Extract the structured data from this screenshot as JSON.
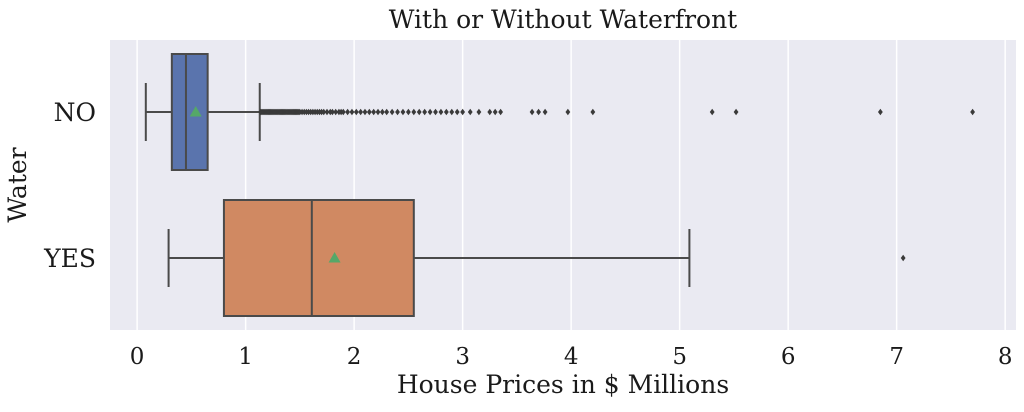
{
  "chart_data": {
    "type": "boxplot",
    "orientation": "horizontal",
    "title": "With or Without Waterfront",
    "xlabel": "House Prices in $ Millions",
    "ylabel": "Water",
    "xlim": [
      -0.25,
      8.1
    ],
    "xticks": [
      0,
      1,
      2,
      3,
      4,
      5,
      6,
      7,
      8
    ],
    "grid": true,
    "colors": {
      "background": "#eaeaf2",
      "grid": "#ffffff",
      "line": "#4a4a4a",
      "mean_marker": "#55a868",
      "NO": "#5a74ad",
      "YES": "#d08962"
    },
    "series": [
      {
        "name": "NO",
        "whisker_low": 0.08,
        "q1": 0.32,
        "median": 0.45,
        "q3": 0.65,
        "whisker_high": 1.13,
        "mean": 0.54,
        "outliers": [
          1.14,
          1.15,
          1.16,
          1.17,
          1.18,
          1.19,
          1.2,
          1.21,
          1.22,
          1.23,
          1.24,
          1.25,
          1.26,
          1.27,
          1.28,
          1.29,
          1.3,
          1.31,
          1.32,
          1.33,
          1.34,
          1.35,
          1.36,
          1.37,
          1.38,
          1.39,
          1.4,
          1.41,
          1.42,
          1.43,
          1.44,
          1.45,
          1.46,
          1.47,
          1.48,
          1.49,
          1.5,
          1.52,
          1.54,
          1.56,
          1.58,
          1.6,
          1.62,
          1.64,
          1.66,
          1.68,
          1.7,
          1.72,
          1.75,
          1.78,
          1.8,
          1.83,
          1.86,
          1.88,
          1.9,
          1.94,
          1.98,
          2.02,
          2.06,
          2.1,
          2.14,
          2.18,
          2.22,
          2.26,
          2.3,
          2.35,
          2.4,
          2.45,
          2.5,
          2.55,
          2.6,
          2.65,
          2.7,
          2.75,
          2.8,
          2.85,
          2.9,
          2.95,
          3.0,
          3.07,
          3.15,
          3.25,
          3.3,
          3.35,
          3.64,
          3.7,
          3.76,
          3.97,
          4.2,
          5.3,
          5.52,
          6.85,
          7.7
        ]
      },
      {
        "name": "YES",
        "whisker_low": 0.29,
        "q1": 0.8,
        "median": 1.61,
        "q3": 2.55,
        "whisker_high": 5.09,
        "mean": 1.82,
        "outliers": [
          7.06
        ]
      }
    ]
  }
}
